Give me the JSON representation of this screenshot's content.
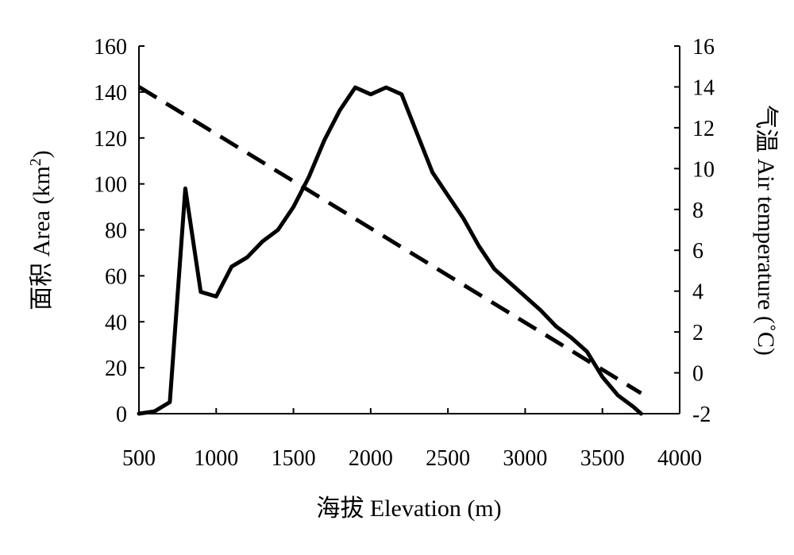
{
  "chart_data": {
    "type": "line",
    "x_axis": {
      "label": "海拔 Elevation (m)",
      "range": [
        500,
        4000
      ],
      "ticks": [
        "500",
        "1000",
        "1500",
        "2000",
        "2500",
        "3000",
        "3500",
        "4000"
      ]
    },
    "y_axis_left": {
      "label_prefix": "面积 Area (km",
      "label_sup": "2",
      "label_suffix": ")",
      "range": [
        0,
        160
      ],
      "ticks": [
        "0",
        "20",
        "40",
        "60",
        "80",
        "100",
        "120",
        "140",
        "160"
      ]
    },
    "y_axis_right": {
      "label": "气温 Air temperature (˚C)",
      "range": [
        -2,
        16
      ],
      "ticks": [
        "-2",
        "0",
        "2",
        "4",
        "6",
        "8",
        "10",
        "12",
        "14",
        "16"
      ]
    },
    "series": [
      {
        "style": "solid",
        "axis": "left",
        "x": [
          500,
          600,
          700,
          800,
          900,
          1000,
          1100,
          1200,
          1300,
          1400,
          1500,
          1600,
          1700,
          1800,
          1900,
          2000,
          2100,
          2200,
          2300,
          2400,
          2500,
          2600,
          2700,
          2800,
          2900,
          3000,
          3100,
          3200,
          3300,
          3400,
          3500,
          3600,
          3700,
          3750
        ],
        "values": [
          0,
          1,
          5,
          98,
          53,
          51,
          64,
          68,
          75,
          80,
          90,
          103,
          119,
          132,
          142,
          139,
          142,
          139,
          122,
          105,
          95,
          85,
          73,
          63,
          57,
          51,
          45,
          38,
          33,
          27,
          16,
          8,
          3,
          0
        ]
      },
      {
        "style": "dashed",
        "axis": "right",
        "x": [
          500,
          3750
        ],
        "values": [
          14,
          -1
        ]
      }
    ],
    "grid": false,
    "legend": "none"
  }
}
